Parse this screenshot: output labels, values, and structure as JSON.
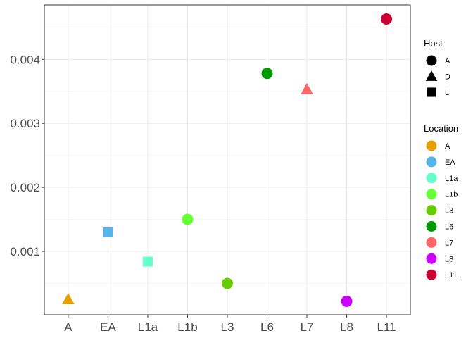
{
  "chart_data": {
    "type": "scatter",
    "categories": [
      "A",
      "EA",
      "L1a",
      "L1b",
      "L3",
      "L6",
      "L7",
      "L8",
      "L11"
    ],
    "ylim": [
      1e-05,
      0.00485
    ],
    "yticks": [
      0.001,
      0.002,
      0.003,
      0.004
    ],
    "ytick_labels": [
      "0.001",
      "0.002",
      "0.003",
      "0.004"
    ],
    "grid": true,
    "legend_position": "right",
    "points": [
      {
        "x": "A",
        "y": 0.00025,
        "host": "D",
        "location": "A"
      },
      {
        "x": "EA",
        "y": 0.0013,
        "host": "L",
        "location": "EA"
      },
      {
        "x": "L1a",
        "y": 0.00084,
        "host": "L",
        "location": "L1a"
      },
      {
        "x": "L1b",
        "y": 0.0015,
        "host": "A",
        "location": "L1b"
      },
      {
        "x": "L3",
        "y": 0.0005,
        "host": "A",
        "location": "L3"
      },
      {
        "x": "L6",
        "y": 0.00378,
        "host": "A",
        "location": "L6"
      },
      {
        "x": "L7",
        "y": 0.00353,
        "host": "D",
        "location": "L7"
      },
      {
        "x": "L8",
        "y": 0.00022,
        "host": "A",
        "location": "L8"
      },
      {
        "x": "L11",
        "y": 0.00463,
        "host": "A",
        "location": "L11"
      }
    ],
    "legends": {
      "host": {
        "title": "Host",
        "items": [
          {
            "label": "A",
            "shape": "circle"
          },
          {
            "label": "D",
            "shape": "triangle"
          },
          {
            "label": "L",
            "shape": "square"
          }
        ]
      },
      "location": {
        "title": "Location",
        "items": [
          {
            "label": "A",
            "color": "#E69F00"
          },
          {
            "label": "EA",
            "color": "#56B4E9"
          },
          {
            "label": "L1a",
            "color": "#66FFCC"
          },
          {
            "label": "L1b",
            "color": "#66FF33"
          },
          {
            "label": "L3",
            "color": "#66CC00"
          },
          {
            "label": "L6",
            "color": "#009900"
          },
          {
            "label": "L7",
            "color": "#FF6666"
          },
          {
            "label": "L8",
            "color": "#CC00FF"
          },
          {
            "label": "L11",
            "color": "#CC0033"
          }
        ]
      }
    }
  }
}
